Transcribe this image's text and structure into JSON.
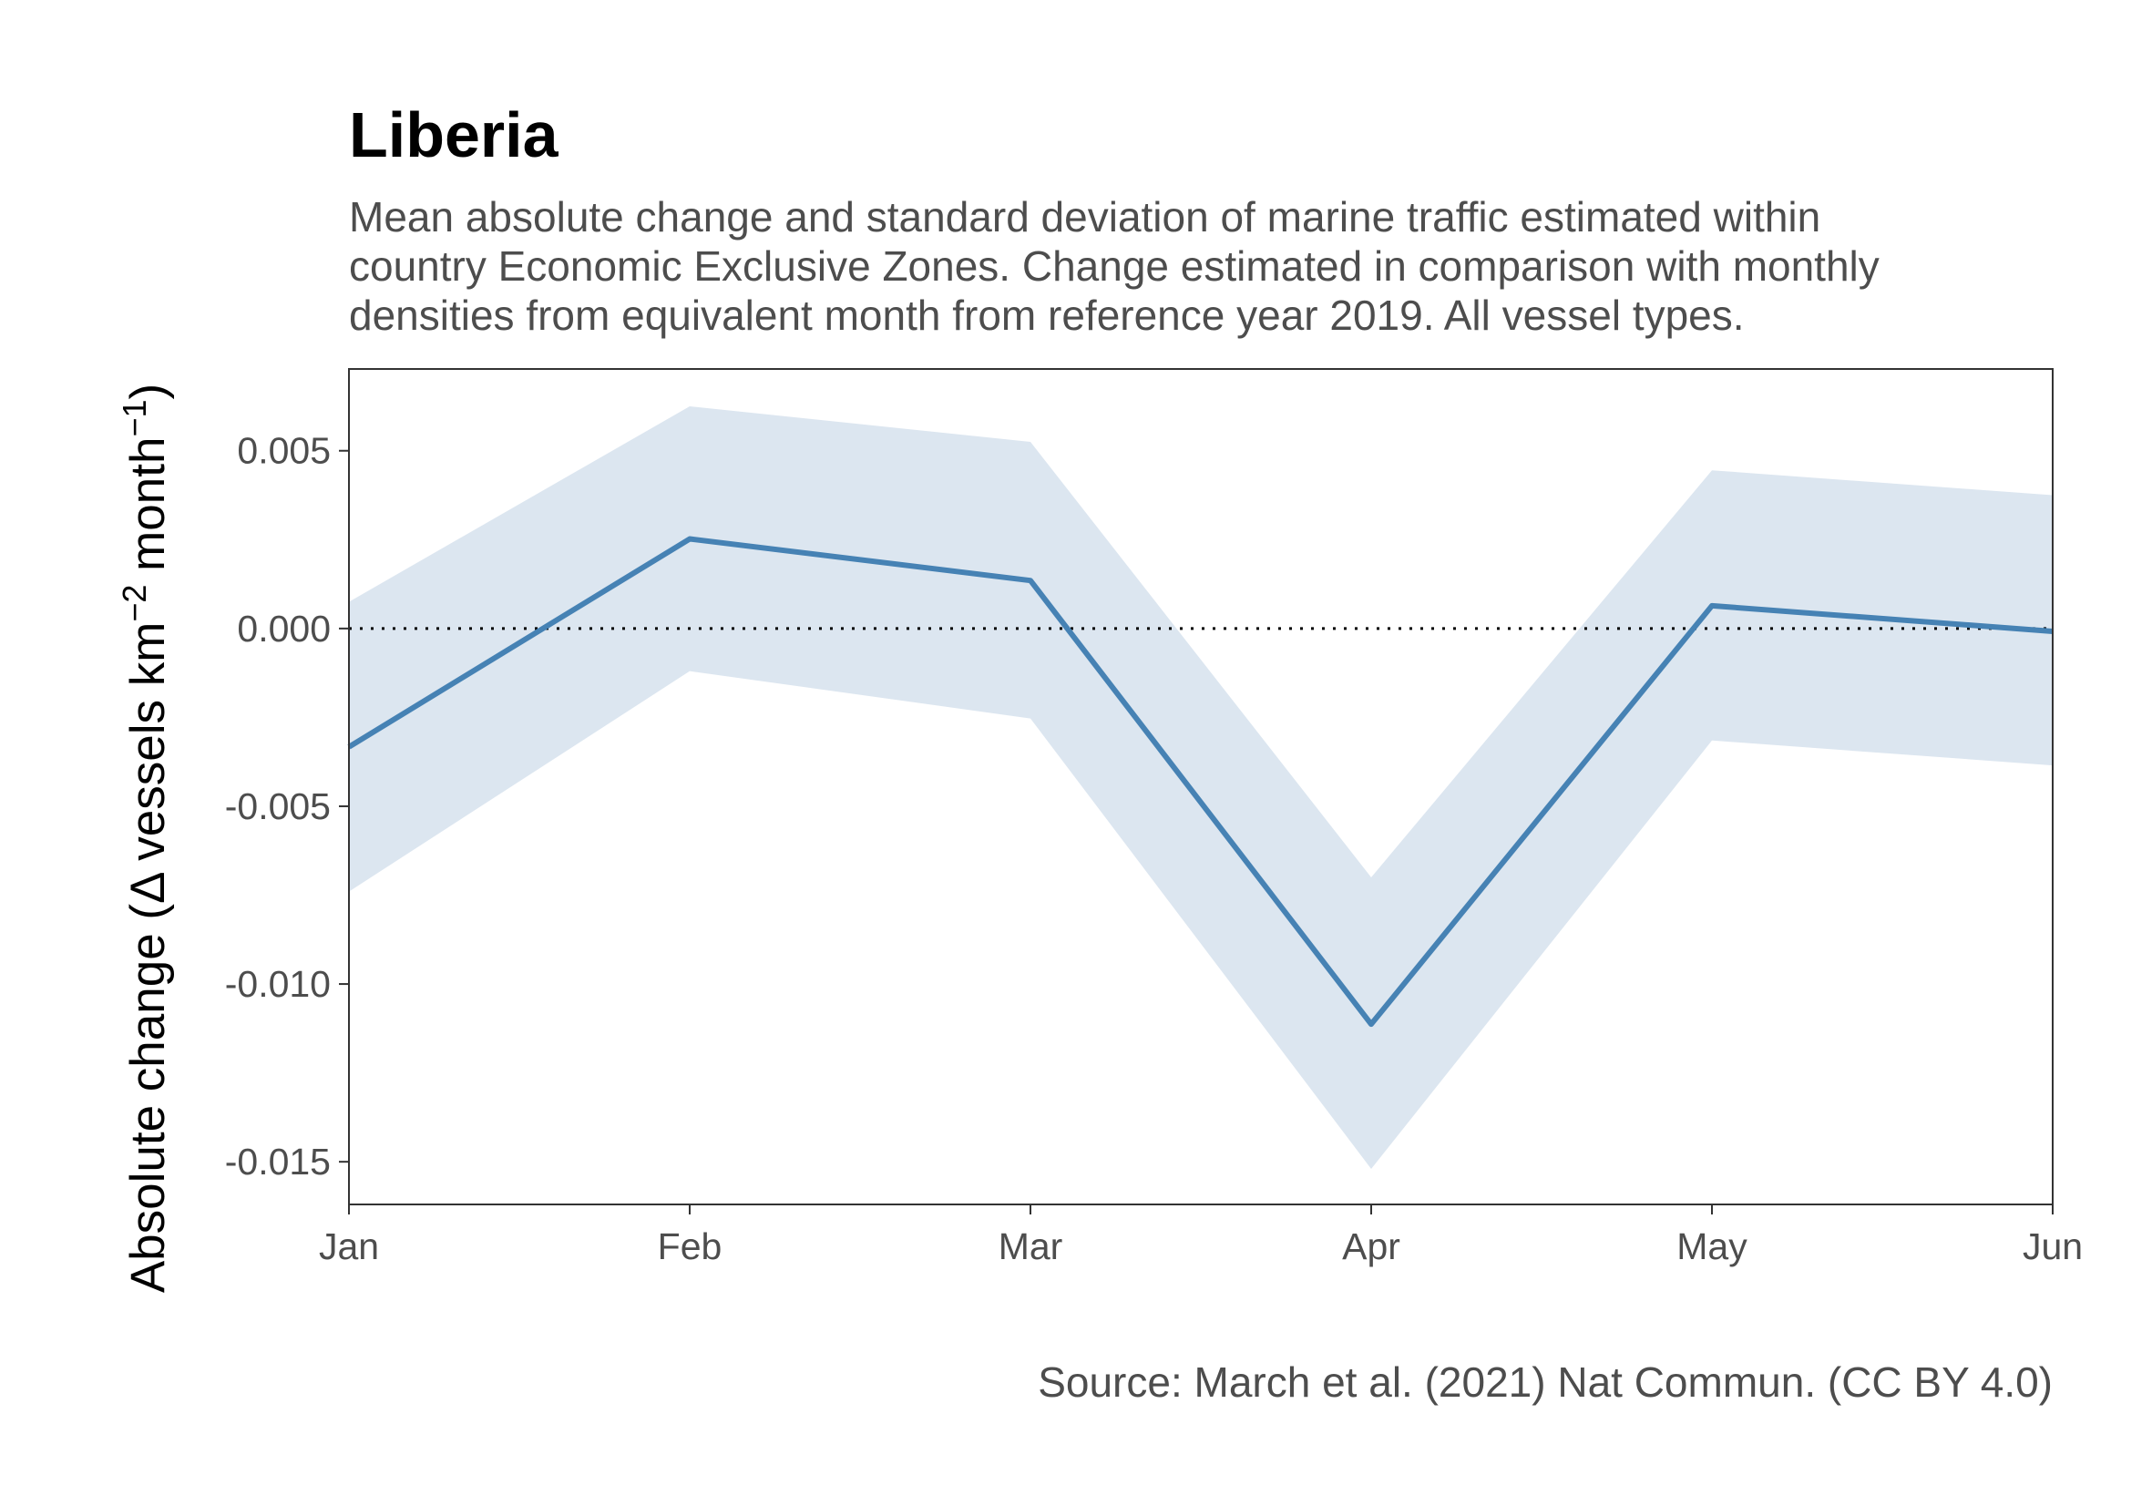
{
  "chart_data": {
    "type": "line",
    "title": "Liberia",
    "subtitle": [
      "Mean absolute change and standard deviation of marine traffic estimated within",
      "country Economic Exclusive Zones. Change estimated in comparison with monthly",
      "densities from equivalent month from reference year 2019. All vessel types."
    ],
    "ylabel": {
      "prefix": "Absolute change (",
      "delta": "Δ",
      "mid": " vessels km",
      "sup1": "−2",
      "mid2": " month",
      "sup2": "−1",
      "suffix": ")"
    },
    "xlabel": "",
    "categories": [
      "Jan",
      "Feb",
      "Mar",
      "Apr",
      "May",
      "Jun"
    ],
    "series": [
      {
        "values": [
          -0.00333,
          0.00252,
          0.00135,
          -0.01113,
          0.00064,
          -8e-05
        ],
        "upper": [
          0.00075,
          0.00625,
          0.00525,
          -0.007,
          0.00445,
          0.00375
        ],
        "lower": [
          -0.0074,
          -0.0012,
          -0.00253,
          -0.0152,
          -0.00315,
          -0.00385
        ]
      }
    ],
    "reference_line": 0,
    "yticks": [
      0.005,
      0.0,
      -0.005,
      -0.01,
      -0.015
    ],
    "ytick_labels": [
      "0.005",
      "0.000",
      "-0.005",
      "-0.010",
      "-0.015"
    ],
    "ylim": [
      -0.0162,
      0.0073
    ],
    "caption": "Source: March et al. (2021) Nat Commun. (CC BY 4.0)",
    "colors": {
      "line": "#4682b4",
      "ribbon": "#dce6f0",
      "axis": "#333333",
      "reference": "#000000"
    },
    "grid": false,
    "legend": "none"
  }
}
